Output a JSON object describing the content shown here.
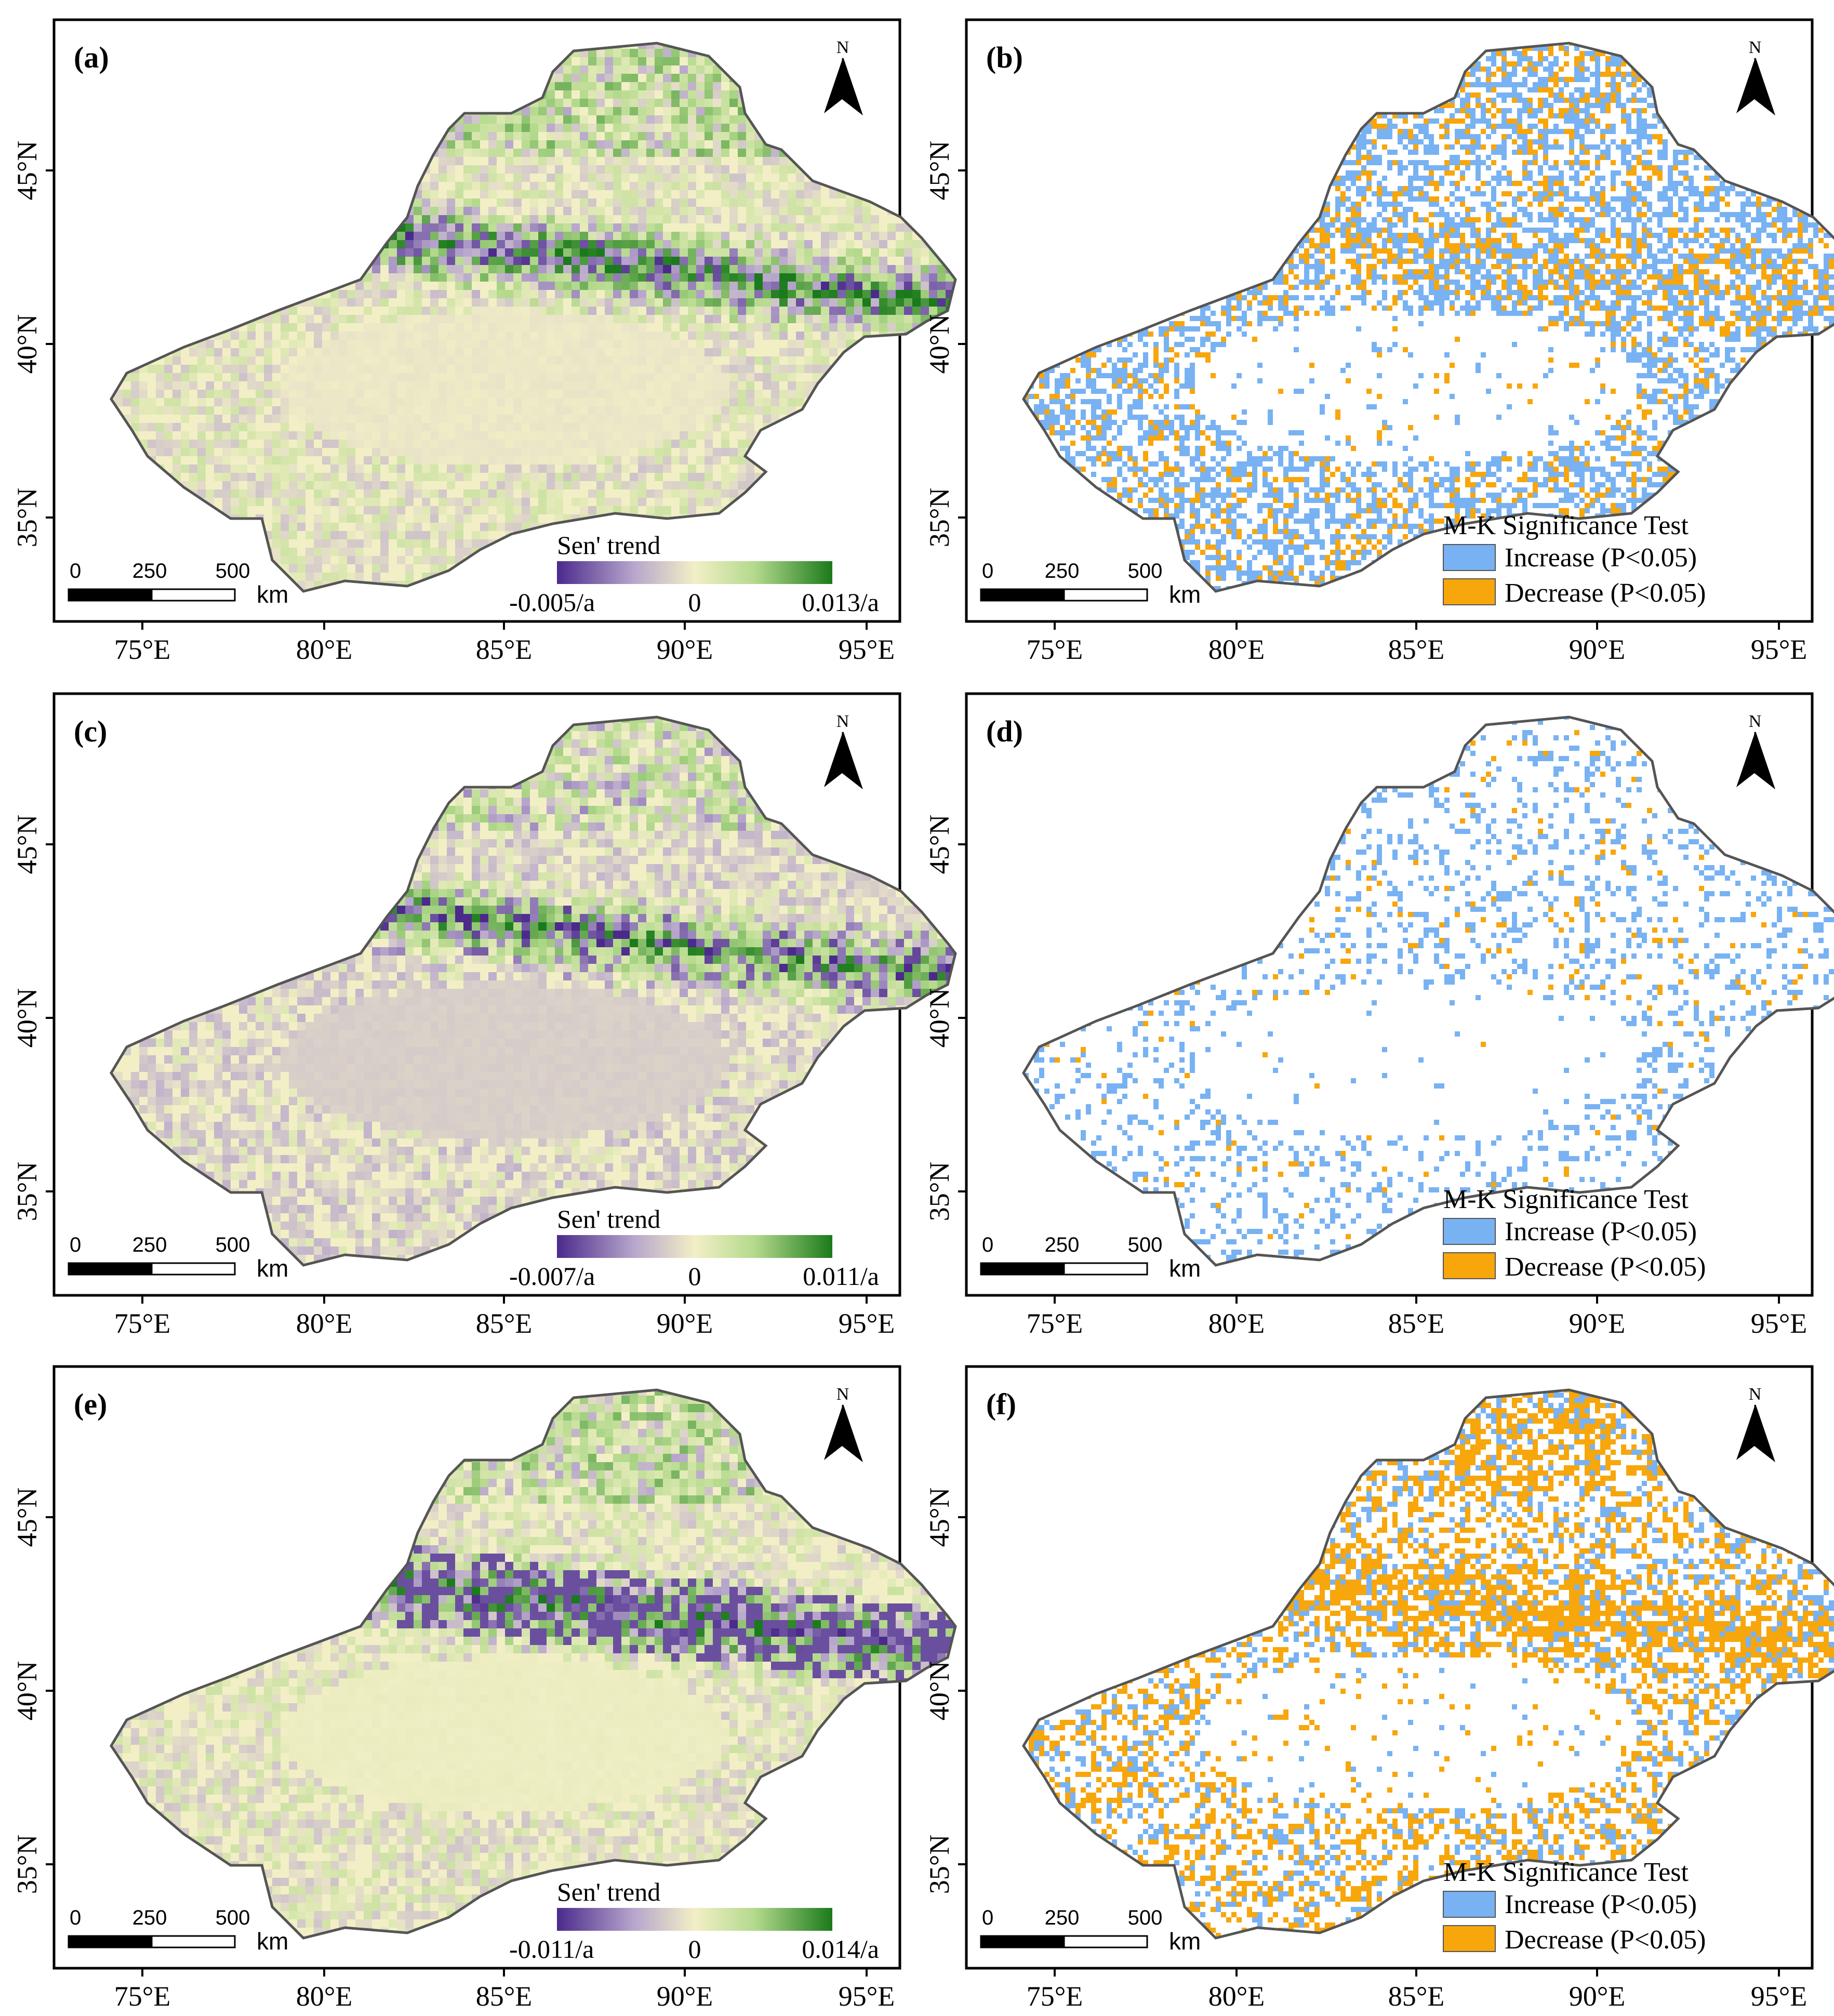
{
  "colors": {
    "trend_neg": "#4b2a8c",
    "trend_mid": "#f2efc6",
    "trend_pos": "#1b7a1b",
    "increase": "#78b2f2",
    "decrease": "#f7a60c",
    "outline": "#555555"
  },
  "axes": {
    "lon_ticks": [
      "75°E",
      "80°E",
      "85°E",
      "90°E",
      "95°E"
    ],
    "lat_ticks": [
      "45°N",
      "40°N",
      "35°N"
    ]
  },
  "north_label": "N",
  "scalebar": {
    "labels": [
      "0",
      "250",
      "500"
    ],
    "unit": "km"
  },
  "panels": [
    {
      "label": "(a)",
      "kind": "trend",
      "legend_title": "Sen' trend",
      "min_label": "-0.005/a",
      "mid_label": "0",
      "max_label": "0.013/a"
    },
    {
      "label": "(b)",
      "kind": "mk",
      "legend_title": "M-K Significance Test",
      "increase_label": "Increase (P<0.05)",
      "decrease_label": "Decrease (P<0.05)",
      "increase_share": 0.38,
      "decrease_share": 0.14
    },
    {
      "label": "(c)",
      "kind": "trend",
      "legend_title": "Sen' trend",
      "min_label": "-0.007/a",
      "mid_label": "0",
      "max_label": "0.011/a"
    },
    {
      "label": "(d)",
      "kind": "mk",
      "legend_title": "M-K Significance Test",
      "increase_label": "Increase (P<0.05)",
      "decrease_label": "Decrease (P<0.05)",
      "increase_share": 0.17,
      "decrease_share": 0.02
    },
    {
      "label": "(e)",
      "kind": "trend",
      "legend_title": "Sen' trend",
      "min_label": "-0.011/a",
      "mid_label": "0",
      "max_label": "0.014/a"
    },
    {
      "label": "(f)",
      "kind": "mk",
      "legend_title": "M-K Significance Test",
      "increase_label": "Increase (P<0.05)",
      "decrease_label": "Decrease (P<0.05)",
      "increase_share": 0.16,
      "decrease_share": 0.27
    }
  ]
}
